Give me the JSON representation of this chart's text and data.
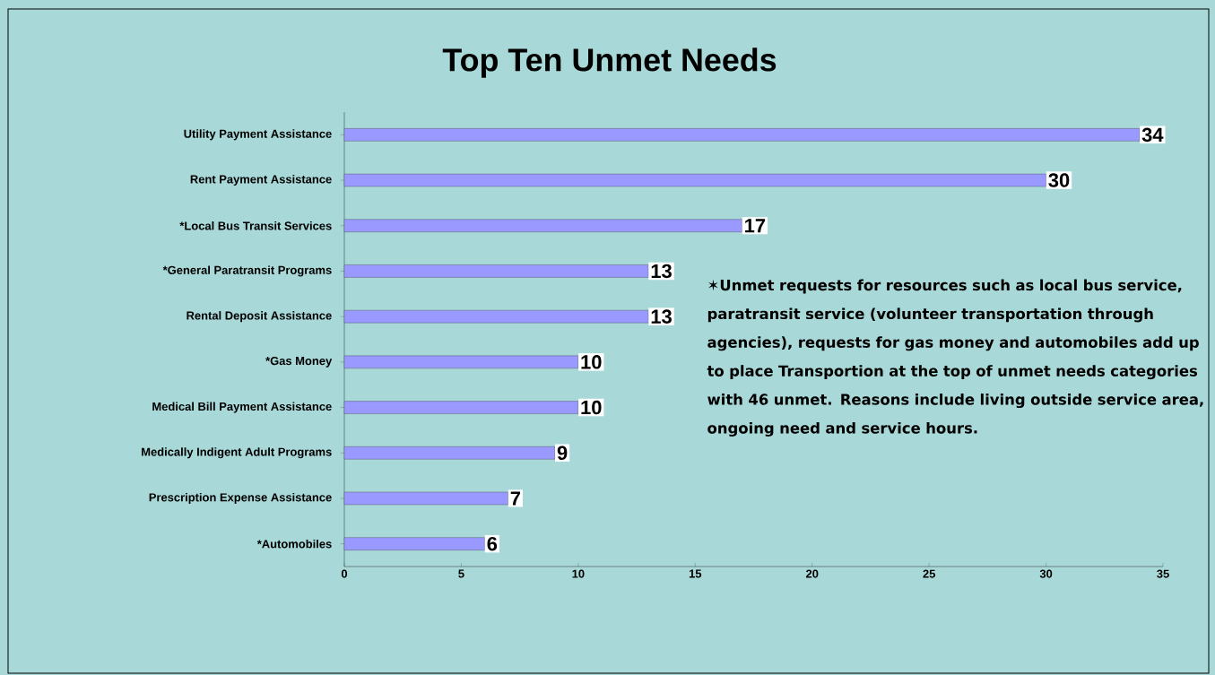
{
  "chart_data": {
    "type": "bar",
    "orientation": "horizontal",
    "title": "Top Ten Unmet Needs",
    "categories": [
      "Utility Payment Assistance",
      "Rent Payment Assistance",
      "*Local Bus Transit Services",
      "*General Paratransit Programs",
      "Rental Deposit Assistance",
      "*Gas Money",
      "Medical Bill Payment Assistance",
      "Medically Indigent Adult Programs",
      "Prescription Expense Assistance",
      "*Automobiles"
    ],
    "values": [
      34,
      30,
      17,
      13,
      13,
      10,
      10,
      9,
      7,
      6
    ],
    "color": "#9999ff",
    "xlim": [
      0,
      35
    ],
    "xticks": [
      0,
      5,
      10,
      15,
      20,
      25,
      30,
      35
    ],
    "data_labels": true,
    "annotations": [
      "✶Unmet requests for resources such as local bus service, paratransit service (volunteer transportation through agencies), requests for gas money and automobiles add up to place Transportion at the top of unmet needs categories with 46 unmet. Reasons include living outside service area, ongoing need and service hours."
    ]
  }
}
